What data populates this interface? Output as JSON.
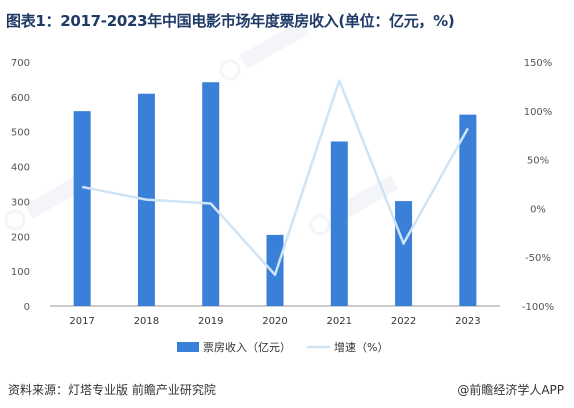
{
  "title": "图表1：2017-2023年中国电影市场年度票房收入(单位：亿元，%)",
  "footer": {
    "source": "资料来源：灯塔专业版 前瞻产业研究院",
    "brand": "@前瞻经济学人APP"
  },
  "colors": {
    "bar": "#3a7fd8",
    "line": "#cfe4f5",
    "axis": "#999999"
  },
  "chart_data": {
    "type": "bar",
    "categories": [
      "2017",
      "2018",
      "2019",
      "2020",
      "2021",
      "2022",
      "2023"
    ],
    "series": [
      {
        "name": "票房收入（亿元）",
        "type": "bar",
        "axis": "left",
        "values": [
          559,
          609,
          642,
          204,
          472,
          301,
          549
        ]
      },
      {
        "name": "增速（%）",
        "type": "line",
        "axis": "right",
        "values": [
          22,
          9,
          5,
          -68,
          131,
          -36,
          82
        ]
      }
    ],
    "y_left": {
      "min": 0,
      "max": 700,
      "ticks": [
        0,
        100,
        200,
        300,
        400,
        500,
        600,
        700
      ]
    },
    "y_right": {
      "min": -100,
      "max": 150,
      "ticks": [
        "-100%",
        "-50%",
        "0%",
        "50%",
        "100%",
        "150%"
      ]
    },
    "legend_position": "bottom",
    "grid": false
  }
}
